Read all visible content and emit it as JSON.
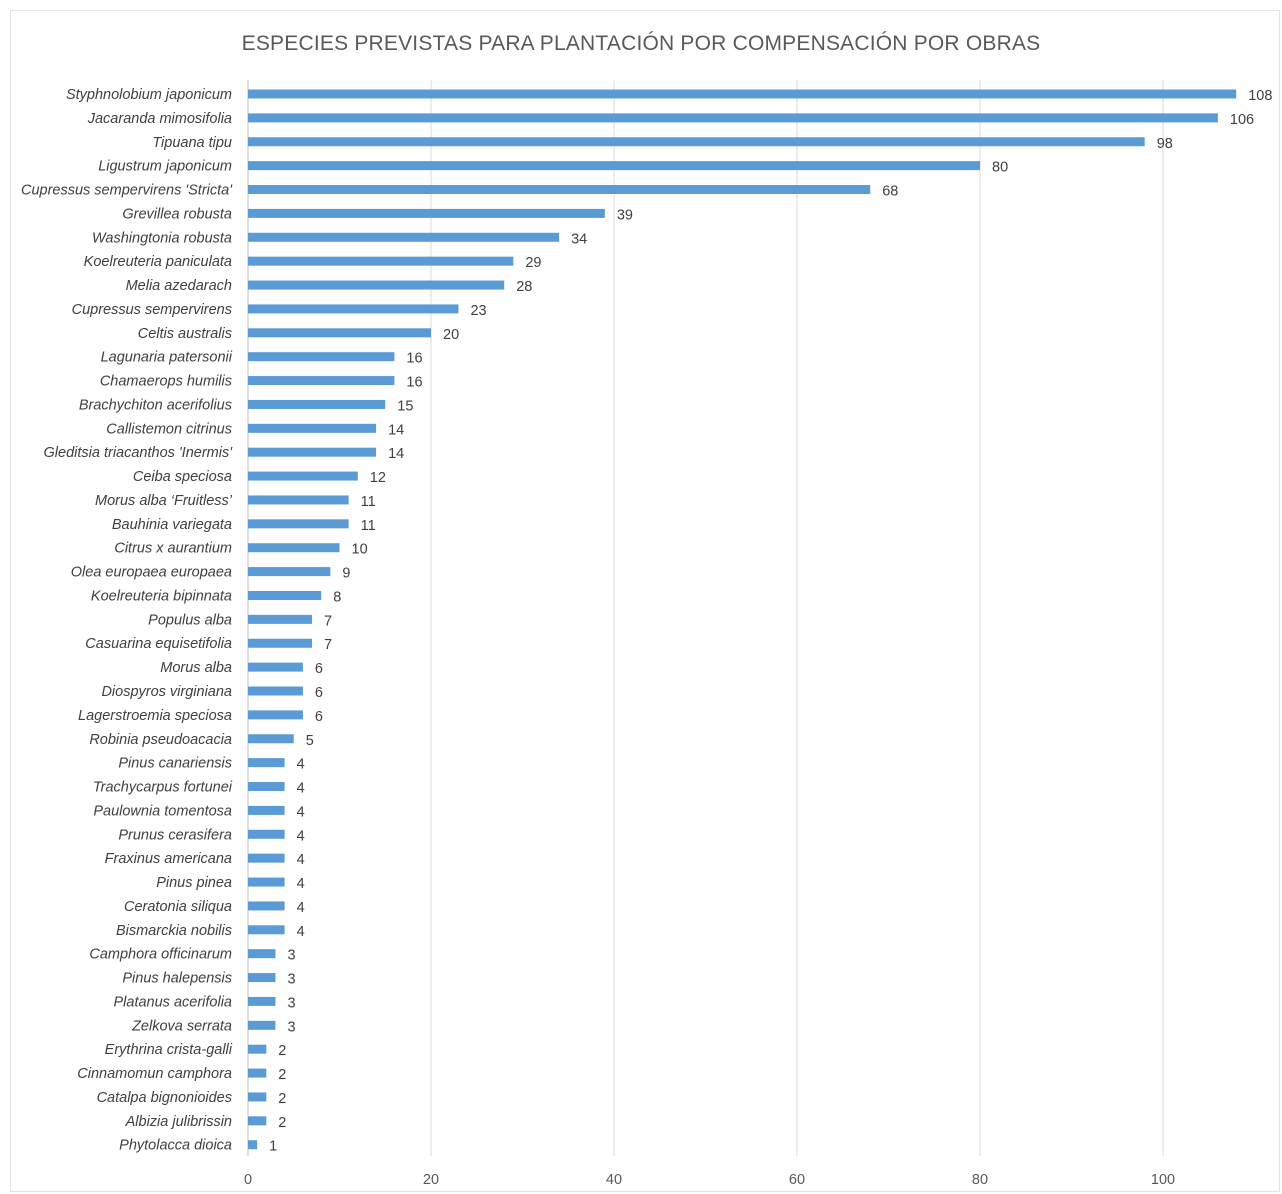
{
  "colors": {
    "bar": "#5b9bd5",
    "grid": "#d9d9d9",
    "text": "#404040",
    "title": "#595959"
  },
  "chart_data": {
    "type": "bar",
    "orientation": "horizontal",
    "title": "ESPECIES PREVISTAS PARA PLANTACIÓN POR COMPENSACIÓN POR OBRAS",
    "xlabel": "",
    "ylabel": "",
    "xlim": [
      0,
      110
    ],
    "xticks": [
      0,
      20,
      40,
      60,
      80,
      100
    ],
    "grid": true,
    "legend": "none",
    "categories": [
      "Styphnolobium japonicum",
      "Jacaranda mimosifolia",
      "Tipuana tipu",
      "Ligustrum japonicum",
      "Cupressus sempervirens 'Stricta'",
      "Grevillea robusta",
      "Washingtonia robusta",
      "Koelreuteria paniculata",
      "Melia azedarach",
      "Cupressus sempervirens",
      "Celtis australis",
      "Lagunaria patersonii",
      "Chamaerops humilis",
      "Brachychiton acerifolius",
      "Callistemon citrinus",
      "Gleditsia triacanthos 'Inermis'",
      "Ceiba speciosa",
      "Morus alba ‘Fruitless’",
      "Bauhinia variegata",
      "Citrus x aurantium",
      "Olea europaea europaea",
      "Koelreuteria bipinnata",
      "Populus alba",
      "Casuarina equisetifolia",
      "Morus alba",
      "Diospyros virginiana",
      "Lagerstroemia speciosa",
      "Robinia pseudoacacia",
      "Pinus canariensis",
      "Trachycarpus fortunei",
      "Paulownia tomentosa",
      "Prunus cerasifera",
      "Fraxinus americana",
      "Pinus pinea",
      "Ceratonia siliqua",
      "Bismarckia nobilis",
      "Camphora officinarum",
      "Pinus halepensis",
      "Platanus acerifolia",
      "Zelkova serrata",
      "Erythrina crista-galli",
      "Cinnamomun camphora",
      "Catalpa bignonioides",
      "Albizia julibrissin",
      "Phytolacca dioica"
    ],
    "values": [
      108,
      106,
      98,
      80,
      68,
      39,
      34,
      29,
      28,
      23,
      20,
      16,
      16,
      15,
      14,
      14,
      12,
      11,
      11,
      10,
      9,
      8,
      7,
      7,
      6,
      6,
      6,
      5,
      4,
      4,
      4,
      4,
      4,
      4,
      4,
      4,
      3,
      3,
      3,
      3,
      2,
      2,
      2,
      2,
      1
    ]
  }
}
